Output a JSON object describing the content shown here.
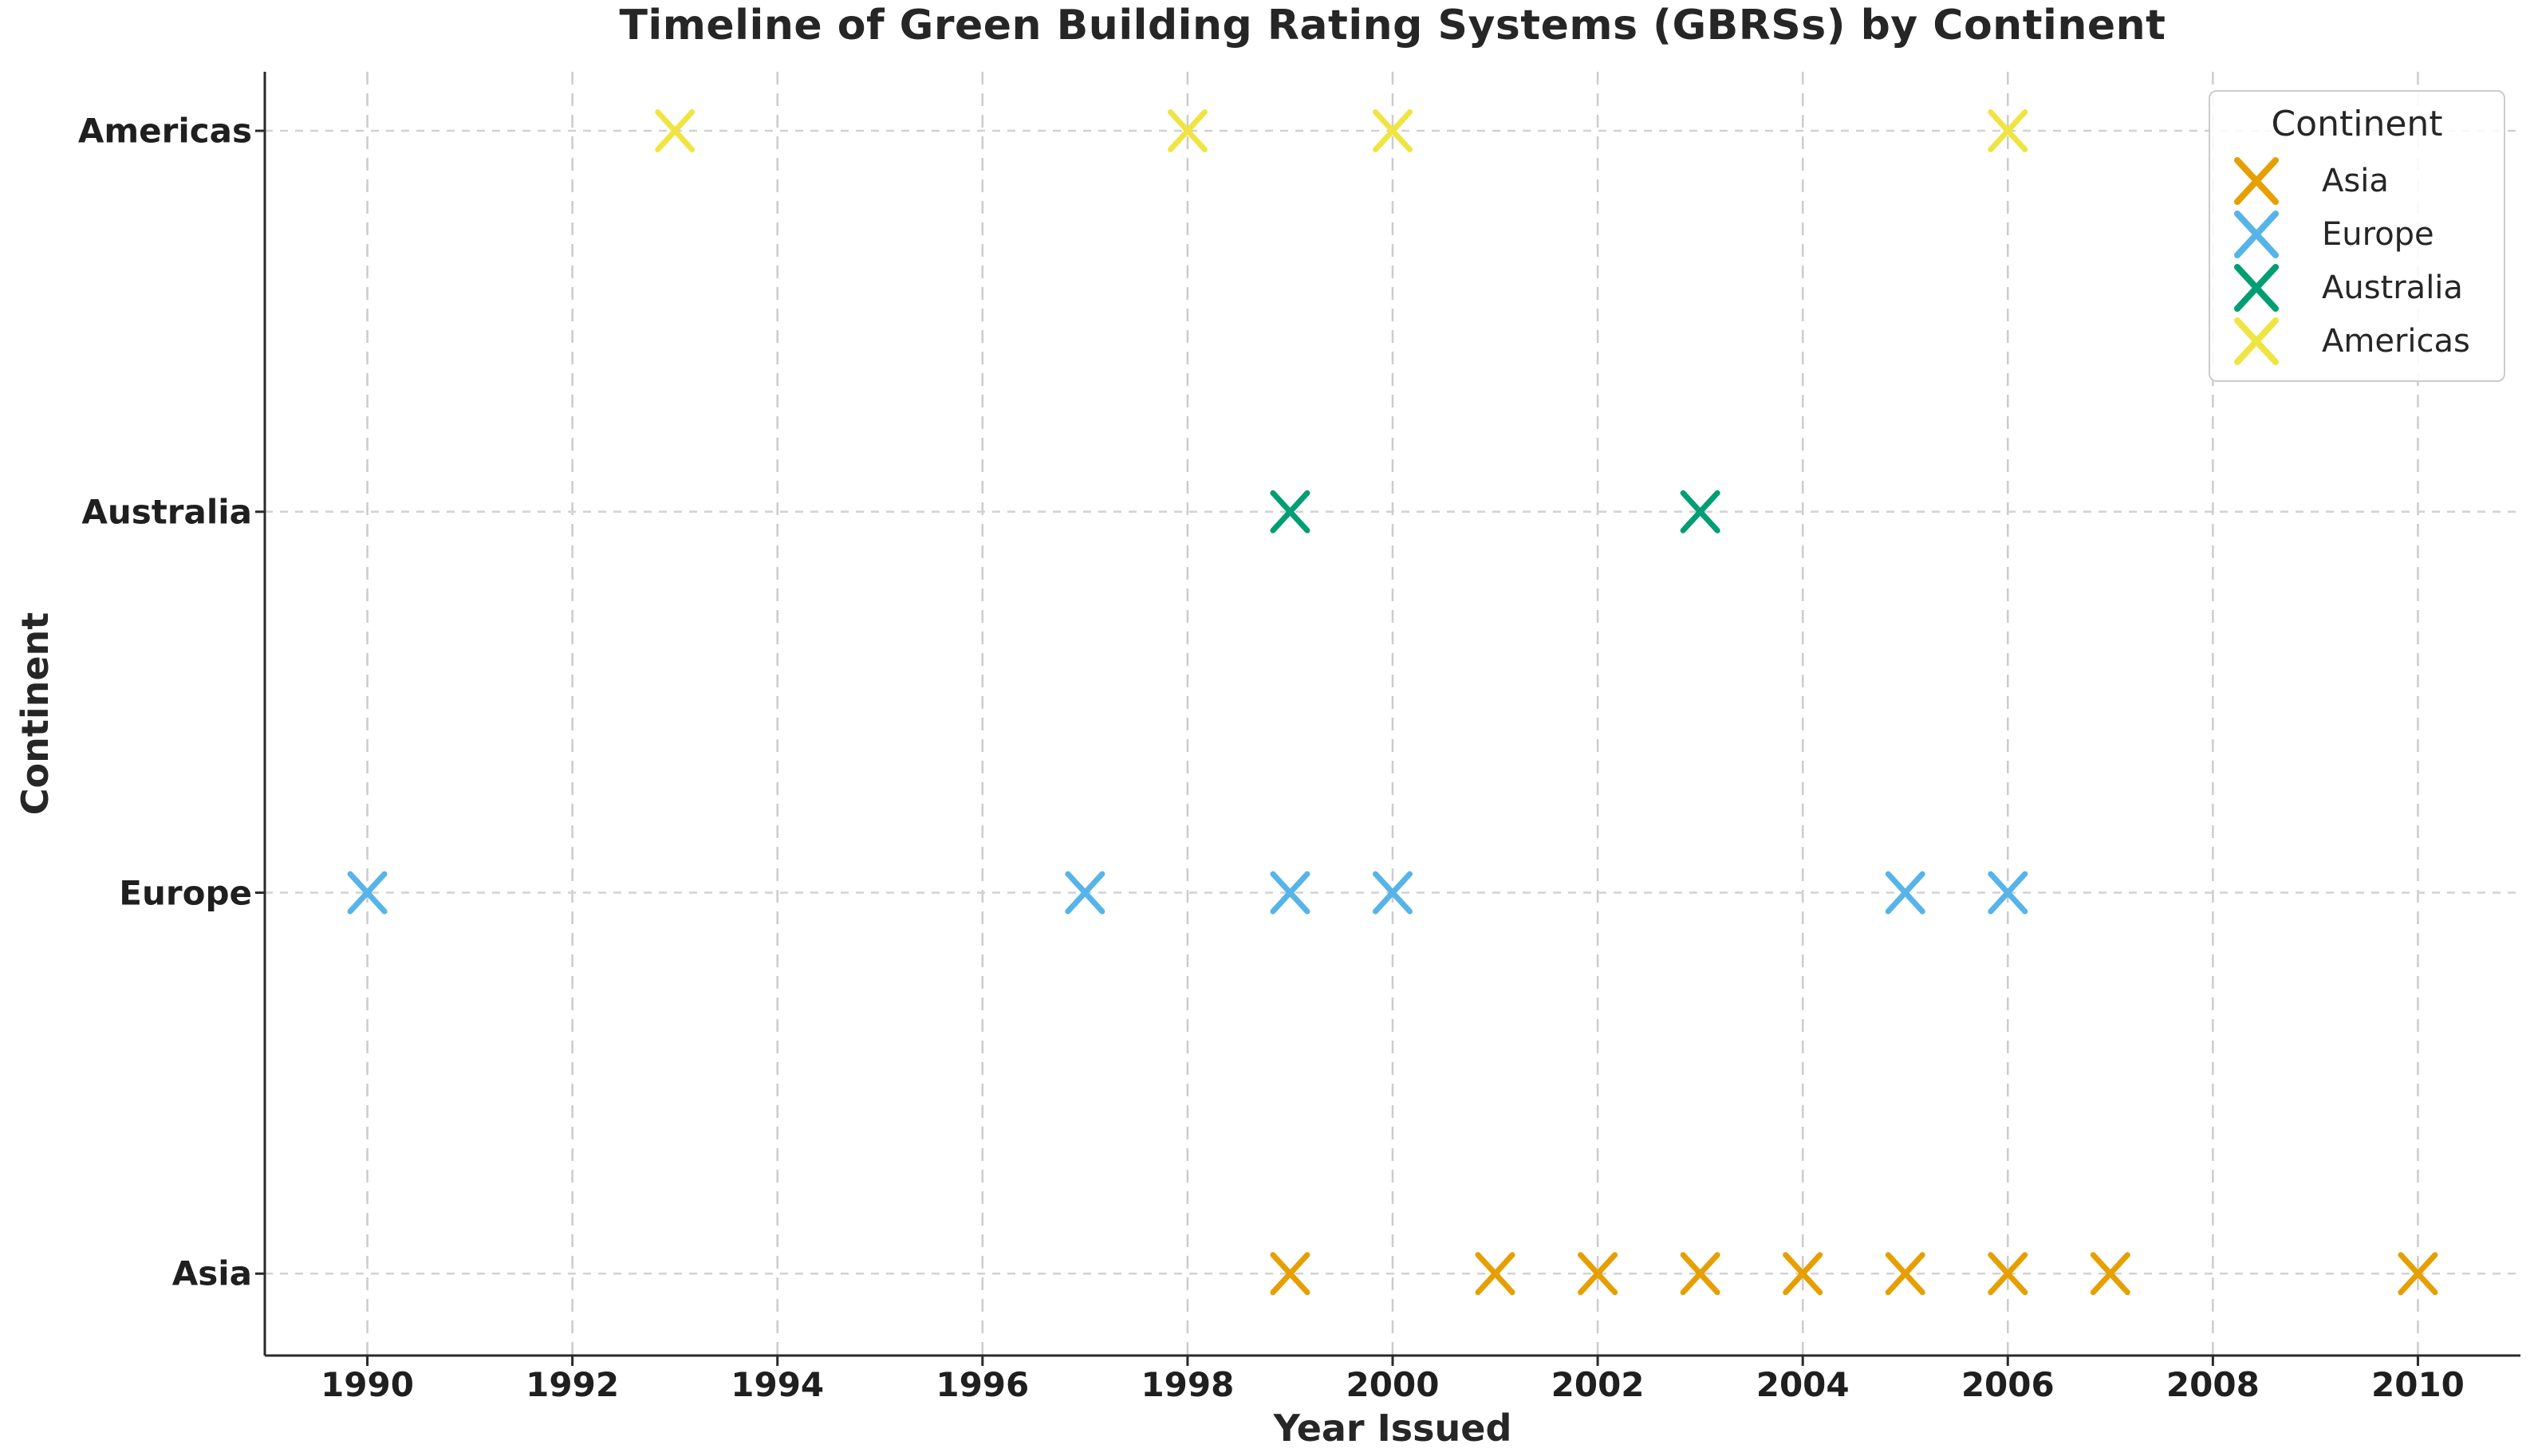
{
  "chart_data": {
    "type": "scatter",
    "title": "Timeline of Green Building Rating Systems (GBRSs) by Continent",
    "xlabel": "Year Issued",
    "ylabel": "Continent",
    "marker": "x",
    "grid": true,
    "x_ticks": [
      1990,
      1992,
      1994,
      1996,
      1998,
      2000,
      2002,
      2004,
      2006,
      2008,
      2010
    ],
    "xlim": [
      1989,
      2011
    ],
    "categories_bottom_to_top": [
      "Asia",
      "Europe",
      "Australia",
      "Americas"
    ],
    "series": [
      {
        "name": "Asia",
        "color": "#E69F00",
        "years": [
          1999,
          2001,
          2002,
          2003,
          2004,
          2005,
          2006,
          2007,
          2010
        ]
      },
      {
        "name": "Europe",
        "color": "#56B4E9",
        "years": [
          1990,
          1997,
          1999,
          2000,
          2005,
          2006
        ]
      },
      {
        "name": "Australia",
        "color": "#009E73",
        "years": [
          1999,
          2003
        ]
      },
      {
        "name": "Americas",
        "color": "#F0E442",
        "years": [
          1993,
          1998,
          2000,
          2006
        ]
      }
    ],
    "legend": {
      "title": "Continent",
      "position": "upper right",
      "entries": [
        "Asia",
        "Europe",
        "Australia",
        "Americas"
      ]
    },
    "colors": {
      "spine": "#2a2a2a",
      "grid": "#cccccc",
      "text": "#262626"
    }
  }
}
